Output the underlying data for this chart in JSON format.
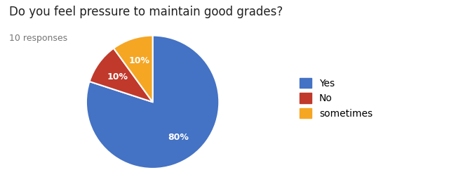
{
  "title": "Do you feel pressure to maintain good grades?",
  "subtitle": "10 responses",
  "labels": [
    "Yes",
    "No",
    "sometimes"
  ],
  "values": [
    80,
    10,
    10
  ],
  "colors": [
    "#4472C4",
    "#C0392B",
    "#F5A623"
  ],
  "title_fontsize": 12,
  "subtitle_fontsize": 9,
  "background_color": "#ffffff",
  "title_color": "#212121",
  "subtitle_color": "#757575",
  "startangle": 90,
  "pct_fontsize": 9
}
